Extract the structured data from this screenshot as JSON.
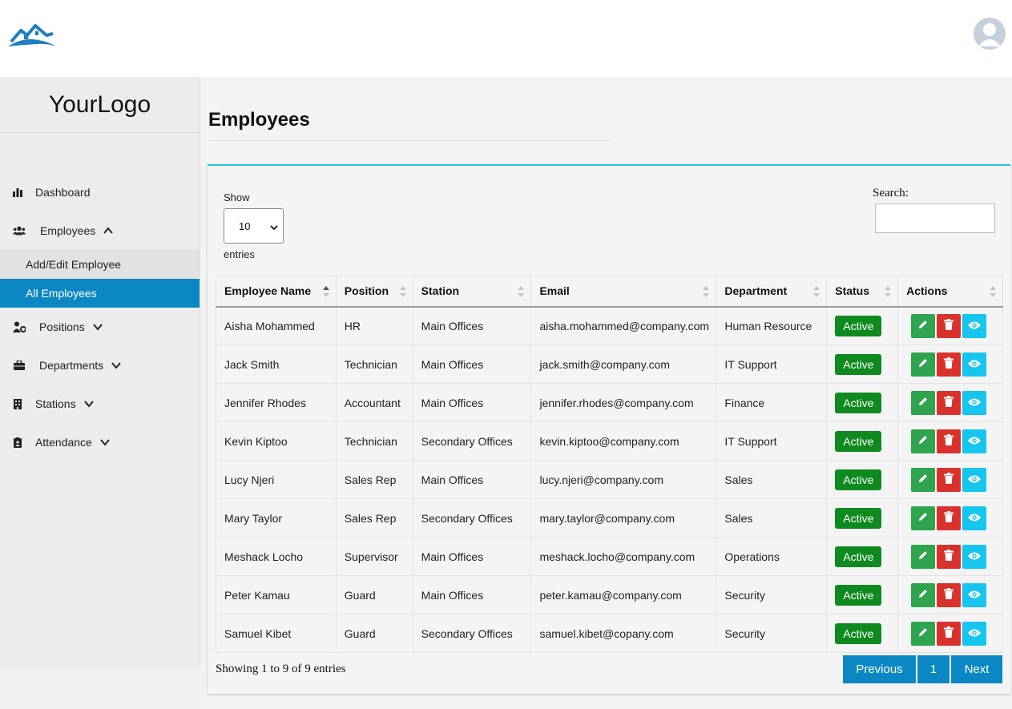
{
  "header": {
    "brand_icon": "house-logo-icon",
    "avatar_icon": "user-avatar-icon"
  },
  "sidebar": {
    "logo": "YourLogo",
    "items": [
      {
        "label": "Dashboard",
        "icon": "bar-chart-icon"
      },
      {
        "label": "Employees",
        "icon": "users-icon",
        "expanded": true,
        "children": [
          {
            "label": "Add/Edit Employee"
          },
          {
            "label": "All Employees",
            "active": true
          }
        ]
      },
      {
        "label": "Positions",
        "icon": "user-tag-icon"
      },
      {
        "label": "Departments",
        "icon": "briefcase-icon"
      },
      {
        "label": "Stations",
        "icon": "building-icon"
      },
      {
        "label": "Attendance",
        "icon": "clipboard-user-icon"
      }
    ]
  },
  "page": {
    "title": "Employees"
  },
  "table_controls": {
    "show_label": "Show",
    "page_length": "10",
    "entries_label": "entries",
    "search_label": "Search:",
    "search_value": ""
  },
  "table": {
    "columns": [
      "Employee Name",
      "Position",
      "Station",
      "Email",
      "Department",
      "Status",
      "Actions"
    ],
    "rows": [
      [
        "Aisha Mohammed",
        "HR",
        "Main Offices",
        "aisha.mohammed@company.com",
        "Human Resource",
        "Active"
      ],
      [
        "Jack Smith",
        "Technician",
        "Main Offices",
        "jack.smith@company.com",
        "IT Support",
        "Active"
      ],
      [
        "Jennifer Rhodes",
        "Accountant",
        "Main Offices",
        "jennifer.rhodes@company.com",
        "Finance",
        "Active"
      ],
      [
        "Kevin Kiptoo",
        "Technician",
        "Secondary Offices",
        "kevin.kiptoo@company.com",
        "IT Support",
        "Active"
      ],
      [
        "Lucy Njeri",
        "Sales Rep",
        "Main Offices",
        "lucy.njeri@company.com",
        "Sales",
        "Active"
      ],
      [
        "Mary Taylor",
        "Sales Rep",
        "Secondary Offices",
        "mary.taylor@company.com",
        "Sales",
        "Active"
      ],
      [
        "Meshack Locho",
        "Supervisor",
        "Main Offices",
        "meshack.locho@company.com",
        "Operations",
        "Active"
      ],
      [
        "Peter Kamau",
        "Guard",
        "Main Offices",
        "peter.kamau@company.com",
        "Security",
        "Active"
      ],
      [
        "Samuel Kibet",
        "Guard",
        "Secondary Offices",
        "samuel.kibet@copany.com",
        "Security",
        "Active"
      ]
    ],
    "info": "Showing 1 to 9 of 9 entries"
  },
  "pagination": {
    "previous": "Previous",
    "current": "1",
    "next": "Next"
  },
  "colors": {
    "accent": "#0b88c4",
    "active_badge": "#0f8a1f",
    "edit": "#2ea44f",
    "delete": "#d9312b",
    "view": "#17c6ef",
    "card_top": "#1fc8e3"
  }
}
